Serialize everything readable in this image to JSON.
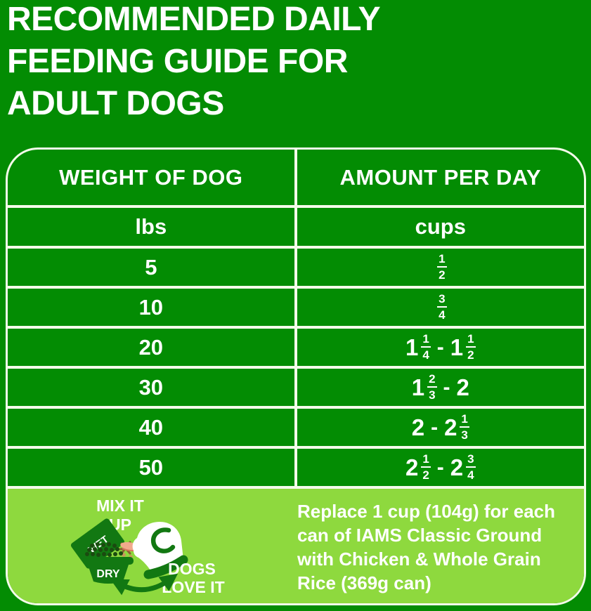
{
  "title": {
    "lines": [
      "RECOMMENDED DAILY",
      "FEEDING GUIDE FOR",
      "ADULT DOGS"
    ]
  },
  "table": {
    "headers": [
      "WEIGHT OF DOG",
      "AMOUNT PER DAY"
    ],
    "units": [
      "lbs",
      "cups"
    ],
    "rows": [
      {
        "weight": "5",
        "amount": "1/2"
      },
      {
        "weight": "10",
        "amount": "3/4"
      },
      {
        "weight": "20",
        "amount": "1 1/4 - 1 1/2"
      },
      {
        "weight": "30",
        "amount": "1 2/3 - 2"
      },
      {
        "weight": "40",
        "amount": "2 - 2 1/3"
      },
      {
        "weight": "50",
        "amount": "2 1/2 - 2 3/4"
      }
    ]
  },
  "footer": {
    "illustration": {
      "mix_label_line1": "MIX IT",
      "mix_label_line2": "UP",
      "wet_label": "WET",
      "dry_label": "DRY",
      "love_label_line1": "DOGS",
      "love_label_line2": "LOVE IT"
    },
    "note_lines": [
      "Replace 1 cup (104g) for each",
      "can of IAMS Classic Ground",
      "with Chicken & Whole Grain",
      "Rice (369g can)"
    ]
  },
  "colors": {
    "background_green": "#038C03",
    "panel_lime": "#8ED93E",
    "accent_dark_green": "#127812",
    "border_white": "#F4FBEA",
    "text_white": "#FFFFFF",
    "tongue_pink": "#F2A98C",
    "tongue_shadow": "#D9775F",
    "kibble_dark": "#1B4A10",
    "spill_tan": "#C9965C",
    "spill_brown": "#8B5E34"
  }
}
